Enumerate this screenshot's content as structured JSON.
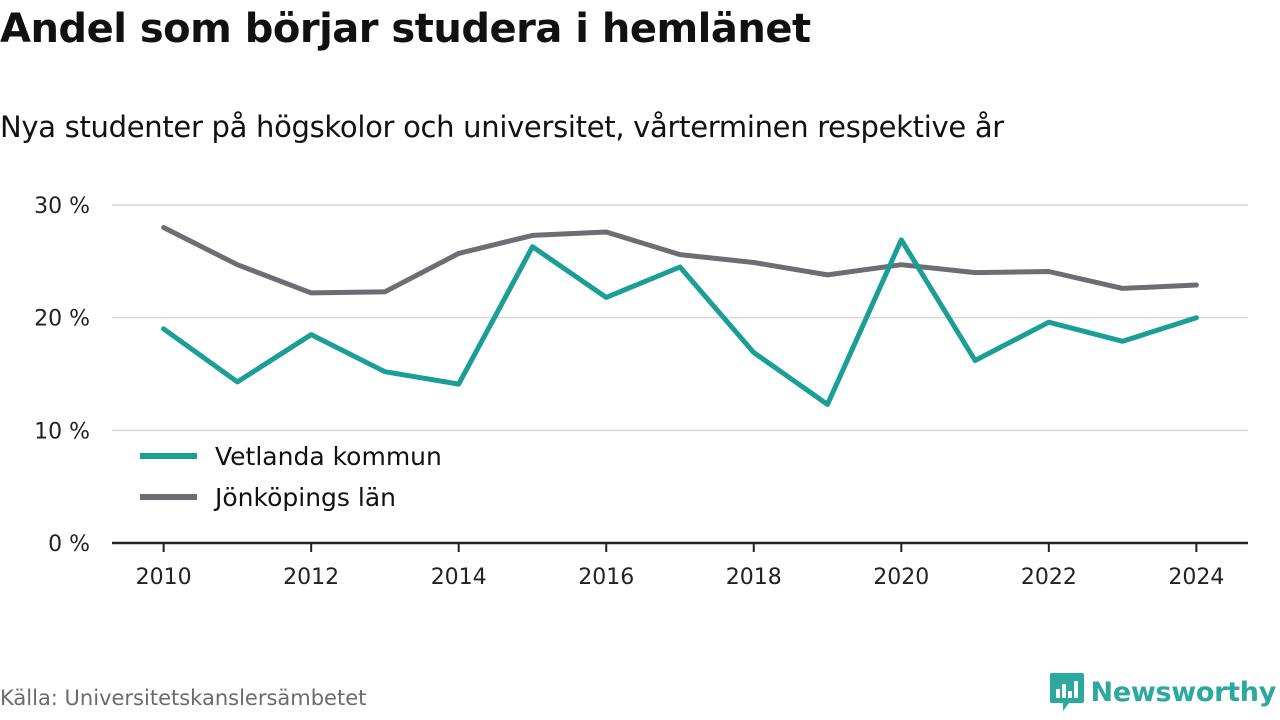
{
  "title": "Andel som börjar studera i hemlänet",
  "subtitle": "Nya studenter på högskolor och universitet, vårterminen respektive år",
  "source": "Källa: Universitetskanslersämbetet",
  "brand": {
    "name": "Newsworthy",
    "icon": "newsworthy-logo-icon",
    "color": "#2ba8a0"
  },
  "chart_data": {
    "type": "line",
    "x": [
      2010,
      2011,
      2012,
      2013,
      2014,
      2015,
      2016,
      2017,
      2018,
      2019,
      2020,
      2021,
      2022,
      2023,
      2024
    ],
    "x_ticks": [
      "2010",
      "2012",
      "2014",
      "2016",
      "2018",
      "2020",
      "2022",
      "2024"
    ],
    "x_tick_values": [
      2010,
      2012,
      2014,
      2016,
      2018,
      2020,
      2022,
      2024
    ],
    "xlim": [
      2009.3,
      2024.7
    ],
    "y_ticks": [
      "0 %",
      "10 %",
      "20 %",
      "30 %"
    ],
    "y_tick_values": [
      0,
      10,
      20,
      30
    ],
    "ylim": [
      0,
      30
    ],
    "grid": true,
    "legend_position": "bottom-left",
    "series": [
      {
        "name": "Vetlanda kommun",
        "color": "#1a9e96",
        "values": [
          19.0,
          14.3,
          18.5,
          15.2,
          14.1,
          26.3,
          21.8,
          24.5,
          16.9,
          12.3,
          26.9,
          16.2,
          19.6,
          17.9,
          20.0
        ]
      },
      {
        "name": "Jönköpings län",
        "color": "#6e6d73",
        "values": [
          28.0,
          24.7,
          22.2,
          22.3,
          25.7,
          27.3,
          27.6,
          25.6,
          24.9,
          23.8,
          24.7,
          24.0,
          24.1,
          22.6,
          22.9
        ]
      }
    ]
  }
}
